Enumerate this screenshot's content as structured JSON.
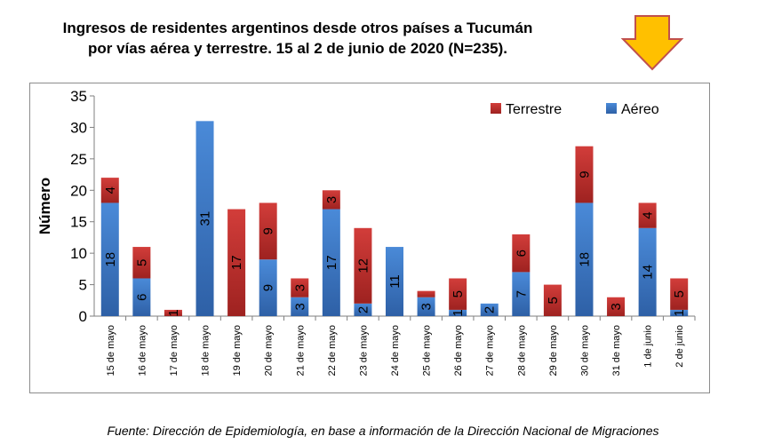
{
  "title_line1": "Ingresos de residentes argentinos desde otros países a Tucumán",
  "title_line2": "por vías aérea y terrestre. 15 al 2 de junio de 2020 (N=235).",
  "source": "Fuente: Dirección de Epidemiología, en base a información de la Dirección Nacional de Migraciones",
  "arrow_icon": "down-arrow-icon",
  "colors": {
    "aereo": "#3a76c4",
    "terrestre": "#c0302e",
    "arrow_fill": "#ffc000",
    "arrow_stroke": "#c0504d"
  },
  "chart_data": {
    "type": "bar",
    "stacked": true,
    "categories": [
      "15 de mayo",
      "16 de mayo",
      "17 de mayo",
      "18 de mayo",
      "19 de mayo",
      "20 de mayo",
      "21 de mayo",
      "22 de mayo",
      "23 de mayo",
      "24 de mayo",
      "25 de mayo",
      "26 de mayo",
      "27 de mayo",
      "28 de mayo",
      "29 de mayo",
      "30 de mayo",
      "31 de mayo",
      "1 de junio",
      "2 de junio"
    ],
    "series": [
      {
        "name": "Aéreo",
        "values": [
          18,
          6,
          0,
          31,
          0,
          9,
          3,
          17,
          2,
          11,
          3,
          1,
          2,
          7,
          0,
          18,
          0,
          14,
          1
        ]
      },
      {
        "name": "Terrestre",
        "values": [
          4,
          5,
          1,
          0,
          17,
          9,
          3,
          3,
          12,
          0,
          1,
          5,
          0,
          6,
          5,
          9,
          3,
          4,
          5
        ]
      }
    ],
    "aereo_labels": [
      "18",
      "6",
      "",
      "31",
      "",
      "9",
      "3",
      "17",
      "2",
      "11",
      "3",
      "1",
      "2",
      "7",
      "",
      "18",
      "",
      "14",
      "1"
    ],
    "terrestre_labels": [
      "4",
      "5",
      "1",
      "",
      "17",
      "9",
      "3",
      "3",
      "12",
      "",
      "",
      "5",
      "",
      "6",
      "5",
      "9",
      "3",
      "4",
      "5"
    ],
    "ylabel": "Número",
    "ylim": [
      0,
      35
    ],
    "yticks": [
      0,
      5,
      10,
      15,
      20,
      25,
      30,
      35
    ],
    "grid": false,
    "legend": [
      "Terrestre",
      "Aéreo"
    ],
    "legend_position": "top-right"
  }
}
